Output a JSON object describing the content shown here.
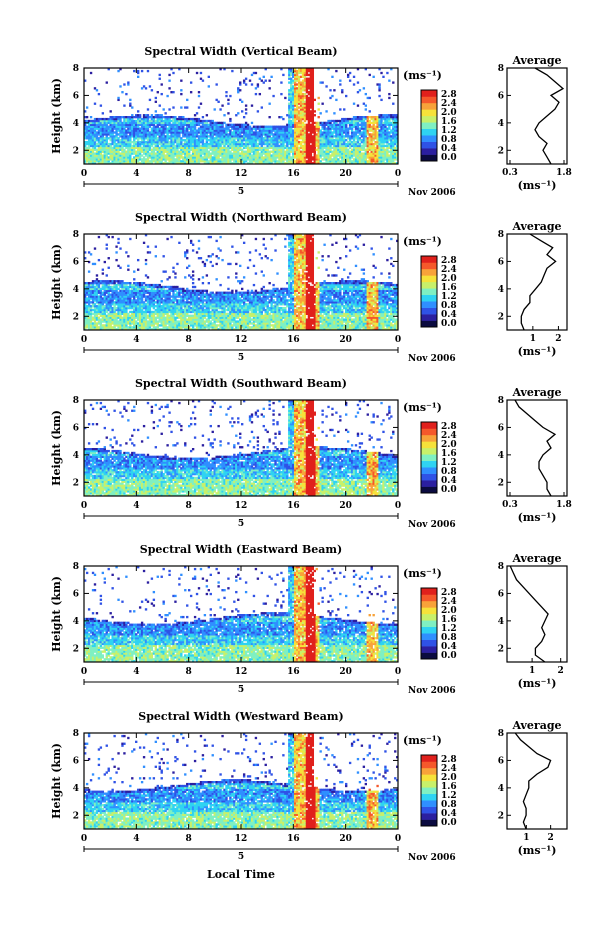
{
  "figure": {
    "global_xlabel": "Local Time",
    "date_day": "5",
    "date_text": "Nov 2006",
    "x_ticks": [
      "0",
      "4",
      "8",
      "12",
      "16",
      "20",
      "0"
    ],
    "y_ticks": [
      "2",
      "4",
      "6",
      "8"
    ],
    "ylabel": "Height (km)",
    "colorbar_unit": "(ms⁻¹)",
    "profile_title": "Average",
    "profile_xlabel": "(ms⁻¹)",
    "colorscale": [
      "#0b0b40",
      "#2b1fa0",
      "#2f52e6",
      "#2f8fff",
      "#2fd3f2",
      "#7ff0c2",
      "#c8f06a",
      "#f6e23a",
      "#f8a23a",
      "#f5582b",
      "#e0201c"
    ]
  },
  "chart_data": [
    {
      "type": "heatmap",
      "title": "Spectral Width (Vertical Beam)",
      "xlabel": "Local Time",
      "ylabel": "Height (km)",
      "xlim": [
        0,
        24
      ],
      "ylim": [
        1,
        8
      ],
      "colorbar": {
        "label": "(ms⁻¹)",
        "ticks": [
          "2.8",
          "2.4",
          "2.0",
          "1.6",
          "1.2",
          "0.8",
          "0.4",
          "0.0"
        ]
      },
      "profile": {
        "title": "Average",
        "xlabel": "(ms⁻¹)",
        "xticks": [
          "0.3",
          "1.8"
        ],
        "xlim": [
          0.3,
          1.8
        ],
        "ylim": [
          1,
          8
        ],
        "points": [
          [
            1.4,
            1.0
          ],
          [
            1.3,
            1.5
          ],
          [
            1.2,
            2.0
          ],
          [
            1.3,
            2.5
          ],
          [
            1.1,
            3.0
          ],
          [
            1.0,
            3.5
          ],
          [
            1.1,
            4.0
          ],
          [
            1.3,
            4.5
          ],
          [
            1.5,
            5.0
          ],
          [
            1.6,
            5.5
          ],
          [
            1.4,
            6.0
          ],
          [
            1.7,
            6.5
          ],
          [
            1.5,
            7.0
          ],
          [
            1.3,
            7.5
          ],
          [
            1.0,
            8.0
          ]
        ]
      }
    },
    {
      "type": "heatmap",
      "title": "Spectral Width (Northward Beam)",
      "xlabel": "Local Time",
      "ylabel": "Height (km)",
      "xlim": [
        0,
        24
      ],
      "ylim": [
        1,
        8
      ],
      "colorbar": {
        "label": "(ms⁻¹)",
        "ticks": [
          "2.8",
          "2.4",
          "2.0",
          "1.6",
          "1.2",
          "0.8",
          "0.4",
          "0.0"
        ]
      },
      "profile": {
        "title": "Average",
        "xlabel": "(ms⁻¹)",
        "xticks": [
          "1",
          "2"
        ],
        "xlim": [
          0.2,
          2.3
        ],
        "ylim": [
          1,
          8
        ],
        "points": [
          [
            0.8,
            1.0
          ],
          [
            0.7,
            1.5
          ],
          [
            0.7,
            2.0
          ],
          [
            0.8,
            2.5
          ],
          [
            1.0,
            3.0
          ],
          [
            1.0,
            3.5
          ],
          [
            1.2,
            4.0
          ],
          [
            1.4,
            4.5
          ],
          [
            1.5,
            5.0
          ],
          [
            1.6,
            5.5
          ],
          [
            1.9,
            6.0
          ],
          [
            1.6,
            6.5
          ],
          [
            1.8,
            7.0
          ],
          [
            1.4,
            7.5
          ],
          [
            1.0,
            8.0
          ]
        ]
      }
    },
    {
      "type": "heatmap",
      "title": "Spectral Width (Southward Beam)",
      "xlabel": "Local Time",
      "ylabel": "Height (km)",
      "xlim": [
        0,
        24
      ],
      "ylim": [
        1,
        8
      ],
      "colorbar": {
        "label": "(ms⁻¹)",
        "ticks": [
          "2.8",
          "2.4",
          "2.0",
          "1.6",
          "1.2",
          "0.8",
          "0.4",
          "0.0"
        ]
      },
      "profile": {
        "title": "Average",
        "xlabel": "(ms⁻¹)",
        "xticks": [
          "0.3",
          "1.8"
        ],
        "xlim": [
          0.3,
          1.8
        ],
        "ylim": [
          1,
          8
        ],
        "points": [
          [
            1.4,
            1.0
          ],
          [
            1.3,
            1.5
          ],
          [
            1.3,
            2.0
          ],
          [
            1.2,
            2.5
          ],
          [
            1.1,
            3.0
          ],
          [
            1.1,
            3.5
          ],
          [
            1.2,
            4.0
          ],
          [
            1.4,
            4.5
          ],
          [
            1.3,
            5.0
          ],
          [
            1.5,
            5.5
          ],
          [
            1.2,
            6.0
          ],
          [
            1.0,
            6.5
          ],
          [
            0.8,
            7.0
          ],
          [
            0.6,
            7.5
          ],
          [
            0.5,
            8.0
          ]
        ]
      }
    },
    {
      "type": "heatmap",
      "title": "Spectral Width (Eastward Beam)",
      "xlabel": "Local Time",
      "ylabel": "Height (km)",
      "xlim": [
        0,
        24
      ],
      "ylim": [
        1,
        8
      ],
      "colorbar": {
        "label": "(ms⁻¹)",
        "ticks": [
          "2.8",
          "2.4",
          "2.0",
          "1.6",
          "1.2",
          "0.8",
          "0.4",
          "0.0"
        ]
      },
      "profile": {
        "title": "Average",
        "xlabel": "(ms⁻¹)",
        "xticks": [
          "1",
          "2"
        ],
        "xlim": [
          0.3,
          2.2
        ],
        "ylim": [
          1,
          8
        ],
        "points": [
          [
            1.5,
            1.0
          ],
          [
            1.2,
            1.5
          ],
          [
            1.2,
            2.0
          ],
          [
            1.4,
            2.5
          ],
          [
            1.5,
            3.0
          ],
          [
            1.4,
            3.5
          ],
          [
            1.5,
            4.0
          ],
          [
            1.6,
            4.5
          ],
          [
            1.4,
            5.0
          ],
          [
            1.2,
            5.5
          ],
          [
            1.0,
            6.0
          ],
          [
            0.8,
            6.5
          ],
          [
            0.6,
            7.0
          ],
          [
            0.5,
            7.5
          ],
          [
            0.4,
            8.0
          ]
        ]
      }
    },
    {
      "type": "heatmap",
      "title": "Spectral Width (Westward Beam)",
      "xlabel": "Local Time",
      "ylabel": "Height (km)",
      "xlim": [
        0,
        24
      ],
      "ylim": [
        1,
        8
      ],
      "colorbar": {
        "label": "(ms⁻¹)",
        "ticks": [
          "2.8",
          "2.4",
          "2.0",
          "1.6",
          "1.2",
          "0.8",
          "0.4",
          "0.0"
        ]
      },
      "profile": {
        "title": "Average",
        "xlabel": "(ms⁻¹)",
        "xticks": [
          "1",
          "2"
        ],
        "xlim": [
          0.4,
          2.6
        ],
        "ylim": [
          1,
          8
        ],
        "points": [
          [
            1.1,
            1.0
          ],
          [
            1.0,
            1.5
          ],
          [
            1.1,
            2.0
          ],
          [
            1.1,
            2.5
          ],
          [
            1.0,
            3.0
          ],
          [
            1.1,
            3.5
          ],
          [
            1.2,
            4.0
          ],
          [
            1.2,
            4.5
          ],
          [
            1.5,
            5.0
          ],
          [
            1.9,
            5.5
          ],
          [
            2.0,
            6.0
          ],
          [
            1.5,
            6.5
          ],
          [
            1.2,
            7.0
          ],
          [
            0.9,
            7.5
          ],
          [
            0.7,
            8.0
          ]
        ]
      }
    }
  ]
}
